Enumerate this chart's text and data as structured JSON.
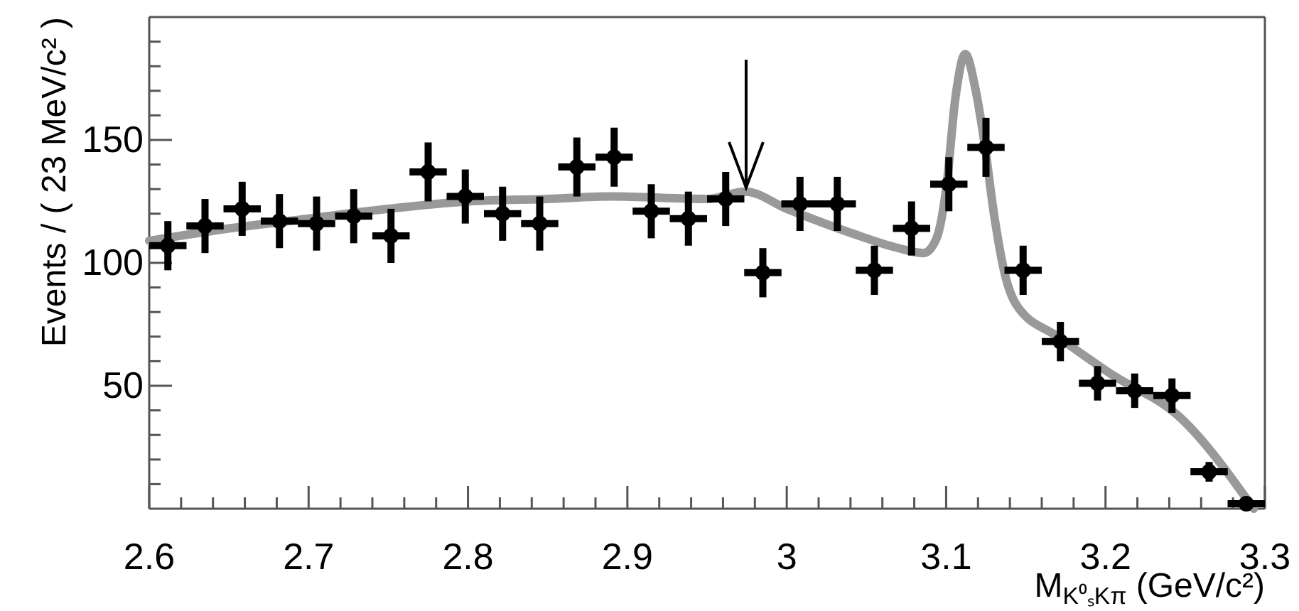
{
  "chart_data": {
    "type": "scatter",
    "xlabel": "M$_{K⁰ₛKπ}$ (GeV/c²)",
    "ylabel": "Events / ( 23 MeV/c² )",
    "xlim": [
      2.6,
      3.3
    ],
    "ylim": [
      0,
      200
    ],
    "xticks": [
      2.6,
      {
        "value": 2.62,
        "label": null
      },
      {
        "value": 2.64,
        "label": null
      },
      {
        "value": 2.66,
        "label": null
      },
      {
        "value": 2.68,
        "label": null
      },
      2.7,
      {
        "value": 2.72,
        "label": null
      },
      {
        "value": 2.74,
        "label": null
      },
      {
        "value": 2.76,
        "label": null
      },
      {
        "value": 2.78,
        "label": null
      },
      2.8,
      {
        "value": 2.82,
        "label": null
      },
      {
        "value": 2.84,
        "label": null
      },
      {
        "value": 2.86,
        "label": null
      },
      {
        "value": 2.88,
        "label": null
      },
      2.9,
      {
        "value": 2.92,
        "label": null
      },
      {
        "value": 2.94,
        "label": null
      },
      {
        "value": 2.96,
        "label": null
      },
      {
        "value": 2.98,
        "label": null
      },
      3,
      {
        "value": 3.02,
        "label": null
      },
      {
        "value": 3.04,
        "label": null
      },
      {
        "value": 3.06,
        "label": null
      },
      {
        "value": 3.08,
        "label": null
      },
      3.1,
      {
        "value": 3.12,
        "label": null
      },
      {
        "value": 3.14,
        "label": null
      },
      {
        "value": 3.16,
        "label": null
      },
      {
        "value": 3.18,
        "label": null
      },
      3.2,
      {
        "value": 3.22,
        "label": null
      },
      {
        "value": 3.24,
        "label": null
      },
      {
        "value": 3.26,
        "label": null
      },
      {
        "value": 3.28,
        "label": null
      },
      3.3
    ],
    "yticks": [
      {
        "value": 10,
        "label": null
      },
      {
        "value": 20,
        "label": null
      },
      {
        "value": 30,
        "label": null
      },
      {
        "value": 40,
        "label": null
      },
      50,
      {
        "value": 60,
        "label": null
      },
      {
        "value": 70,
        "label": null
      },
      {
        "value": 80,
        "label": null
      },
      {
        "value": 90,
        "label": null
      },
      100,
      {
        "value": 110,
        "label": null
      },
      {
        "value": 120,
        "label": null
      },
      {
        "value": 130,
        "label": null
      },
      {
        "value": 140,
        "label": null
      },
      150,
      {
        "value": 160,
        "label": null
      },
      {
        "value": 170,
        "label": null
      },
      {
        "value": 180,
        "label": null
      },
      {
        "value": 190,
        "label": null
      }
    ],
    "grid": false,
    "marker": "circle",
    "series": [
      {
        "color": "#000000",
        "x": [
          2.6117,
          2.635,
          2.6583,
          2.6817,
          2.705,
          2.7283,
          2.7517,
          2.775,
          2.7983,
          2.8217,
          2.845,
          2.8683,
          2.8917,
          2.915,
          2.9383,
          2.9617,
          2.985,
          3.0083,
          3.0317,
          3.055,
          3.0783,
          3.1017,
          3.125,
          3.1483,
          3.1717,
          3.195,
          3.2183,
          3.2417,
          3.265,
          3.2883
        ],
        "values": [
          107,
          115,
          122,
          117,
          116,
          119,
          111,
          137,
          127,
          120,
          116,
          139,
          143,
          121,
          118,
          126,
          96,
          124,
          124,
          97,
          114,
          132,
          147,
          97,
          68,
          51,
          48,
          46,
          15,
          2
        ],
        "errors": [
          10,
          11,
          11,
          11,
          11,
          11,
          11,
          12,
          11,
          11,
          11,
          12,
          12,
          11,
          11,
          11,
          10,
          11,
          11,
          10,
          11,
          11,
          12,
          10,
          8,
          7,
          7,
          7,
          4,
          1.5
        ],
        "xerrors": [
          0.0117,
          0.0117,
          0.0117,
          0.0117,
          0.0117,
          0.0117,
          0.0117,
          0.0117,
          0.0117,
          0.0117,
          0.0117,
          0.0117,
          0.0117,
          0.0117,
          0.0117,
          0.0117,
          0.0117,
          0.0117,
          0.0117,
          0.0117,
          0.0117,
          0.0117,
          0.0117,
          0.0117,
          0.0117,
          0.0117,
          0.0117,
          0.0117,
          0.0117,
          0.0117
        ]
      },
      {
        "type": "line",
        "color": "#999999",
        "marker": "none",
        "line_style": "solid",
        "x": [
          2.6,
          2.65,
          2.7,
          2.75,
          2.8,
          2.85,
          2.89,
          2.95,
          2.974,
          3.0,
          3.041,
          3.07,
          3.086,
          3.094,
          3.1,
          3.106,
          3.112,
          3.118,
          3.124,
          3.13,
          3.137,
          3.144,
          3.17,
          3.203,
          3.247,
          3.293
        ],
        "values": [
          109,
          114,
          118,
          122,
          125,
          126,
          127,
          126,
          129,
          122,
          112,
          106,
          104,
          110,
          130,
          168,
          185,
          172,
          149,
          120,
          95,
          83,
          70,
          55,
          37,
          0
        ]
      }
    ]
  }
}
